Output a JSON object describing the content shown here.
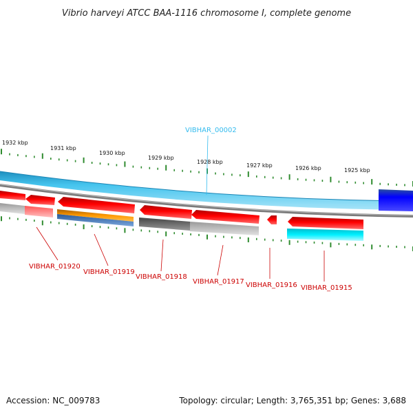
{
  "title": "Vibrio harveyi ATCC BAA-1116 chromosome I, complete genome",
  "footer": {
    "accession": "Accession: NC_009783",
    "summary": "Topology: circular; Length: 3,765,351 bp; Genes: 3,688"
  },
  "colors": {
    "gene_label": "#cc0000",
    "rna_label": "#33bbee",
    "tick": "#2e8b2e",
    "backbone": "#7a7a7a",
    "outer_ring": "#40c0ec",
    "outer_ring_dark": "#2090c0",
    "gene_forward": "#ff0000",
    "cds_orange": "#ff9900",
    "cds_blue": "#4a7ab8",
    "cds_gray": "#777777",
    "cds_light_gray": "#bbbbbb",
    "cds_cyan": "#00eeff",
    "feature_blue": "#0000ee",
    "feature_pink": "#ff8080"
  },
  "kbp_labels": [
    "1932 kbp",
    "1931 kbp",
    "1930 kbp",
    "1929 kbp",
    "1928 kbp",
    "1927 kbp",
    "1926 kbp",
    "1925 kbp"
  ],
  "rna_label": "VIBHAR_00002",
  "gene_labels": [
    "VIBHAR_01920",
    "VIBHAR_01919",
    "VIBHAR_01918",
    "VIBHAR_01917",
    "VIBHAR_01916",
    "VIBHAR_01915"
  ]
}
